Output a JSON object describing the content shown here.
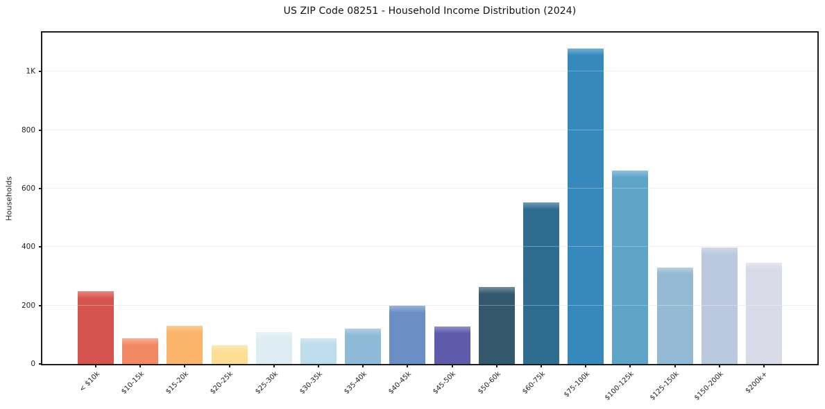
{
  "chart_data": {
    "type": "bar",
    "title": "US ZIP Code 08251 - Household Income Distribution (2024)",
    "xlabel": "",
    "ylabel": "Households",
    "ylim": [
      0,
      1134
    ],
    "grid": "horizontal",
    "legend": "none",
    "categories": [
      "< $10k",
      "$10-15k",
      "$15-20k",
      "$20-25k",
      "$25-30k",
      "$30-35k",
      "$35-40k",
      "$40-45k",
      "$45-50k",
      "$50-60k",
      "$60-75k",
      "$75-100k",
      "$100-125k",
      "$125-150k",
      "$150-200k",
      "$200k+"
    ],
    "values": [
      250,
      88,
      130,
      65,
      110,
      88,
      120,
      200,
      127,
      263,
      552,
      1080,
      662,
      330,
      398,
      346
    ],
    "bar_colors": [
      "#d6544f",
      "#f38865",
      "#f9b36a",
      "#fcdf95",
      "#ddedf3",
      "#bddcec",
      "#8fbad7",
      "#6b8fc4",
      "#5d5baa",
      "#34596f",
      "#2f6d90",
      "#3789bb",
      "#5ea4c9",
      "#94b9d3",
      "#bac9de",
      "#d8dae8"
    ],
    "yticks": [
      {
        "value": 0,
        "label": "0"
      },
      {
        "value": 200,
        "label": "200"
      },
      {
        "value": 400,
        "label": "400"
      },
      {
        "value": 600,
        "label": "600"
      },
      {
        "value": 800,
        "label": "800"
      },
      {
        "value": 1000,
        "label": "1K"
      }
    ]
  },
  "colors": {
    "spine": "#1c1c1c",
    "grid": "#e9e9ee",
    "text": "#222222",
    "background": "#ffffff"
  }
}
